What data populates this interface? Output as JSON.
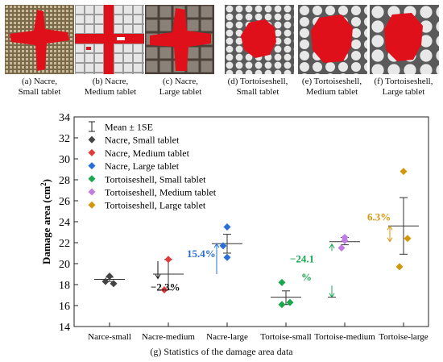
{
  "panels": [
    {
      "label": "(a) Nacre,",
      "sub": "Small tablet"
    },
    {
      "label": "(b) Nacre,",
      "sub": "Medium tablet"
    },
    {
      "label": "(c) Nacre,",
      "sub": "Large tablet"
    },
    {
      "label": "(d) Tortoiseshell,",
      "sub": "Small tablet"
    },
    {
      "label": "(e) Tortoiseshell,",
      "sub": "Medium tablet"
    },
    {
      "label": "(f) Tortoiseshell,",
      "sub": "Large tablet"
    }
  ],
  "figure_caption": "(g) Statistics of the damage area data",
  "colors": {
    "damage": "#e0101a",
    "nacre_small": "#444444",
    "nacre_medium": "#e03a3a",
    "nacre_large": "#2a6fd6",
    "tort_small": "#1aa84f",
    "tort_medium": "#c27be0",
    "tort_large": "#d4960a"
  },
  "chart_data": {
    "type": "scatter",
    "xlabel": "",
    "ylabel": "Damage area (cm²)",
    "ylabel_main": "Damage area (cm",
    "ylabel_sup": "2",
    "ylabel_end": ")",
    "ylim": [
      14,
      34
    ],
    "yticks": [
      "14",
      "16",
      "18",
      "20",
      "22",
      "24",
      "26",
      "28",
      "30",
      "32",
      "34"
    ],
    "categories": [
      "Narce-small",
      "Nacre-medium",
      "Nacre-large",
      "Tortoise-small",
      "Tortoise-medium",
      "Tortoise-large"
    ],
    "legend": {
      "position": "top-left",
      "entries": [
        "Mean ± 1SE",
        "Nacre, Small tablet",
        "Nacre, Medium tablet",
        "Nacre, Large tablet",
        "Tortoiseshell, Small tablet",
        "Tortoiseshell, Medium tablet",
        "Tortoiseshell, Large tablet"
      ]
    },
    "series": [
      {
        "name": "Nacre, Small tablet",
        "values": [
          18.8,
          18.3,
          18.1
        ],
        "mean": 18.5,
        "se_low": 18.3,
        "se_high": 18.7
      },
      {
        "name": "Nacre, Medium tablet",
        "values": [
          20.4,
          17.5
        ],
        "mean": 19.0,
        "se_low": 17.5,
        "se_high": 20.4
      },
      {
        "name": "Nacre, Large tablet",
        "values": [
          23.5,
          21.7,
          20.6
        ],
        "mean": 21.9,
        "se_low": 21.0,
        "se_high": 22.8
      },
      {
        "name": "Tortoiseshell, Small tablet",
        "values": [
          18.2,
          16.3,
          16.1
        ],
        "mean": 16.8,
        "se_low": 16.1,
        "se_high": 17.4
      },
      {
        "name": "Tortoiseshell, Medium tablet",
        "values": [
          22.5,
          22.2,
          21.5
        ],
        "mean": 22.1,
        "se_low": 21.8,
        "se_high": 22.5
      },
      {
        "name": "Tortoiseshell, Large tablet",
        "values": [
          28.8,
          22.4,
          19.7
        ],
        "mean": 23.6,
        "se_low": 20.9,
        "se_high": 26.3
      }
    ],
    "annotations": [
      {
        "text": "−2.3%",
        "color": "#111111"
      },
      {
        "text": "15.4%",
        "color": "#2a6fd6"
      },
      {
        "text": "−24.1",
        "text2": "%",
        "color": "#1aa84f"
      },
      {
        "text": "6.3%",
        "color": "#d4960a"
      }
    ]
  }
}
